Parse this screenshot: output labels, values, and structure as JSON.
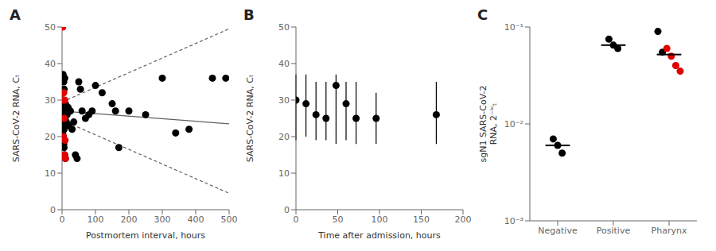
{
  "chart_data": [
    {
      "type": "scatter",
      "title": "A",
      "xlabel": "Postmortem interval, hours",
      "ylabel": "SARS-CoV-2 RNA, Cₜ",
      "xlim": [
        0,
        500
      ],
      "ylim": [
        0,
        50
      ],
      "xticks": [
        0,
        100,
        200,
        300,
        400,
        500
      ],
      "yticks": [
        0,
        10,
        20,
        30,
        40,
        50
      ],
      "grid": false,
      "series": [
        {
          "type": "scatter",
          "marker": "circle",
          "color": "#000000",
          "x": [
            3,
            5,
            6,
            8,
            10,
            12,
            2,
            4,
            3,
            5,
            6,
            8,
            10,
            2,
            4,
            3,
            5,
            6,
            8,
            10,
            15,
            20,
            25,
            30,
            35,
            40,
            45,
            50,
            55,
            60,
            70,
            80,
            90,
            100,
            120,
            150,
            160,
            170,
            200,
            250,
            300,
            340,
            380,
            450,
            490,
            2,
            3,
            4,
            7,
            9,
            11,
            13,
            18
          ],
          "values": [
            37,
            35,
            33,
            36,
            29,
            27,
            26,
            28,
            25,
            23,
            22,
            25,
            24,
            21,
            20,
            19,
            18,
            17,
            15,
            14,
            26,
            23,
            27,
            22,
            24,
            15,
            14,
            35,
            33,
            27,
            25,
            26,
            27,
            34,
            32,
            29,
            27,
            17,
            27,
            26,
            36,
            21,
            22,
            36,
            36,
            30,
            32,
            22,
            27,
            25,
            23,
            24,
            28
          ]
        },
        {
          "type": "scatter",
          "marker": "circle",
          "color": "#e00000",
          "x": [
            2,
            5,
            3,
            8,
            6,
            4,
            9,
            7,
            10
          ],
          "values": [
            50,
            32,
            30,
            30,
            25,
            20,
            19,
            15,
            14
          ]
        },
        {
          "type": "line",
          "line_style": "solid",
          "color": "#606060",
          "x": [
            0,
            500
          ],
          "values": [
            27,
            23.5
          ]
        },
        {
          "type": "line",
          "line_style": "dashed",
          "color": "#606060",
          "x": [
            0,
            500
          ],
          "values": [
            29.5,
            49.5
          ]
        },
        {
          "type": "line",
          "line_style": "dashed",
          "color": "#606060",
          "x": [
            0,
            500
          ],
          "values": [
            24.5,
            4.5
          ]
        }
      ]
    },
    {
      "type": "errorbar",
      "title": "B",
      "xlabel": "Time after admission, hours",
      "ylabel": "SARS-CoV-2 RNA, Cₜ",
      "xlim": [
        0,
        200
      ],
      "ylim": [
        0,
        50
      ],
      "xticks": [
        0,
        50,
        100,
        150,
        200
      ],
      "yticks": [
        0,
        10,
        20,
        30,
        40,
        50
      ],
      "grid": false,
      "series": [
        {
          "marker": "circle",
          "color": "#000000",
          "x": [
            0,
            12,
            24,
            36,
            48,
            60,
            72,
            96,
            168
          ],
          "values": [
            30,
            29,
            26,
            25,
            34,
            29,
            25,
            25,
            26
          ],
          "error_low": [
            11,
            9,
            7,
            6,
            16,
            10,
            7,
            7,
            8
          ],
          "error_high": [
            7,
            8,
            9,
            10,
            3,
            6,
            10,
            7,
            9
          ]
        }
      ]
    },
    {
      "type": "strip",
      "title": "C",
      "ylabel": "sgN1 SARS-CoV-2\nRNA, 2⁻ᴵᶜₜ",
      "categories": [
        "Negative",
        "Positive",
        "Pharynx"
      ],
      "log": "y",
      "ylim": [
        0.001,
        0.1
      ],
      "yticks": [
        {
          "value": 0.001,
          "label": "10⁻³"
        },
        {
          "value": 0.01,
          "label": "10⁻²"
        },
        {
          "value": 0.1,
          "label": "10⁻¹"
        }
      ],
      "grid": false,
      "series": [
        {
          "marker": "circle",
          "color": "#000000",
          "values": [
            [
              0.007,
              0.006,
              0.005
            ],
            [
              0.075,
              0.065,
              0.06
            ],
            [
              0.09,
              0.055
            ]
          ]
        },
        {
          "marker": "circle",
          "color": "#e00000",
          "values": [
            [],
            [],
            [
              0.06,
              0.05,
              0.04,
              0.035
            ]
          ]
        }
      ],
      "medians": [
        0.006,
        0.065,
        0.052
      ]
    }
  ]
}
